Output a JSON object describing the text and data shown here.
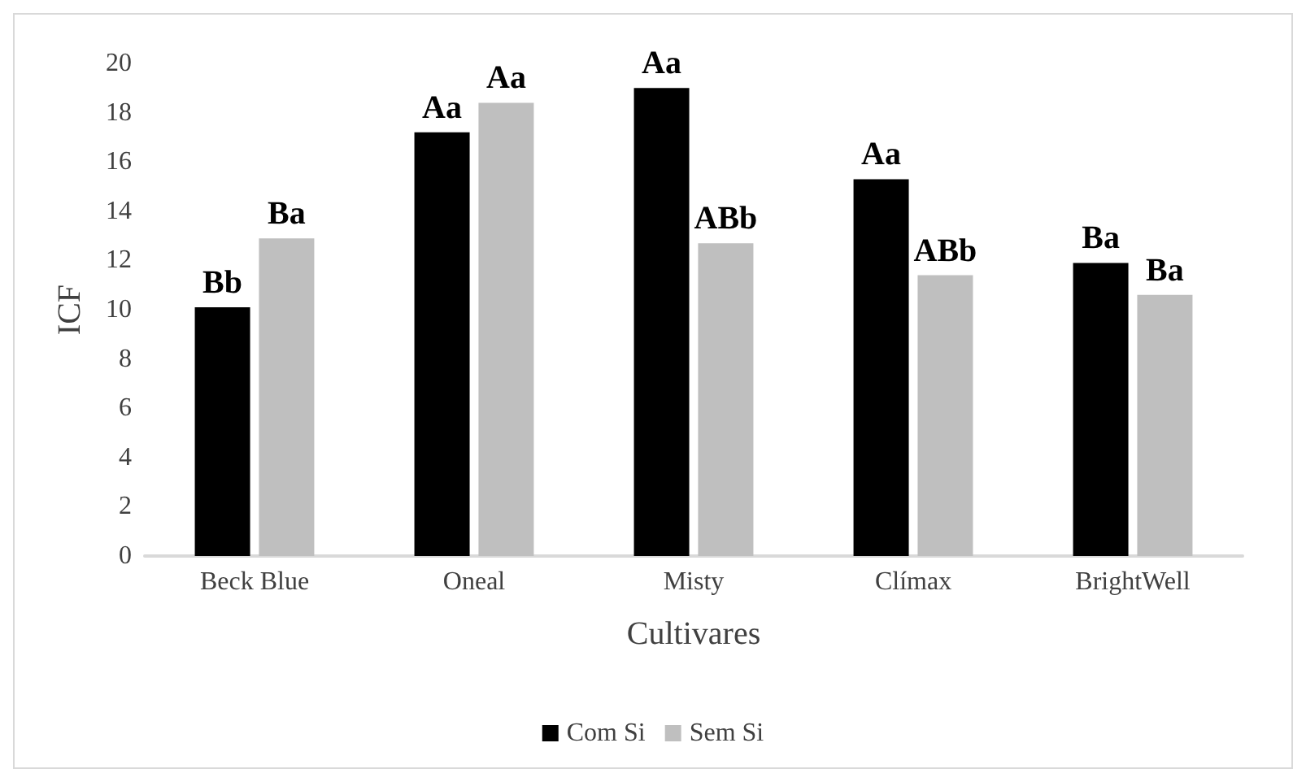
{
  "chart_data": {
    "type": "bar",
    "xlabel": "Cultivares",
    "ylabel": "ICF",
    "categories": [
      "Beck Blue",
      "Oneal",
      "Misty",
      "Clímax",
      "BrightWell"
    ],
    "series": [
      {
        "name": "Com Si",
        "color": "#000000",
        "values": [
          10.1,
          17.2,
          19.0,
          15.3,
          11.9
        ],
        "value_labels": [
          "Bb",
          "Aa",
          "Aa",
          "Aa",
          "Ba"
        ]
      },
      {
        "name": "Sem Si",
        "color": "#bfbfbf",
        "values": [
          12.9,
          18.4,
          12.7,
          11.4,
          10.6
        ],
        "value_labels": [
          "Ba",
          "Aa",
          "ABb",
          "ABb",
          "Ba"
        ]
      }
    ],
    "ylim": [
      0,
      20
    ],
    "yticks": [
      0,
      2,
      4,
      6,
      8,
      10,
      12,
      14,
      16,
      18,
      20
    ],
    "grid": false,
    "legend": "bottom"
  }
}
